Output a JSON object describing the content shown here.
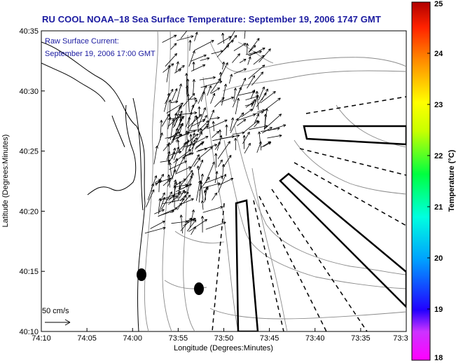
{
  "title": "RU COOL  NOAA–18  Sea Surface Temperature:  September 19, 2006 1747 GMT",
  "current_note": {
    "line1": "Raw Surface Current:",
    "line2": "September 19, 2006 17:00 GMT"
  },
  "scale_label": "50 cm/s",
  "chart_data": {
    "type": "map",
    "xlabel": "Longitude (Degrees:Minutes)",
    "ylabel": "Latitude (Degrees:Minutes)",
    "x_ticks": [
      "74:10",
      "74:05",
      "74:00",
      "73:55",
      "73:50",
      "73:45",
      "73:40",
      "73:35",
      "73:3"
    ],
    "y_ticks": [
      "40:35",
      "40:30",
      "40:25",
      "40:20",
      "40:15",
      "40:10"
    ],
    "xlim": [
      "74:10",
      "73:30"
    ],
    "ylim": [
      "40:10",
      "40:35"
    ],
    "colorbar": {
      "label": "Temperature (°C)",
      "min": 18,
      "max": 25,
      "ticks": [
        "25",
        "24",
        "23",
        "22",
        "21",
        "20",
        "19",
        "18"
      ]
    }
  },
  "colors": {
    "title": "#1a1aa0",
    "note": "#1a1aa0",
    "contour": "#8a8a8a",
    "coastline": "#000000"
  }
}
